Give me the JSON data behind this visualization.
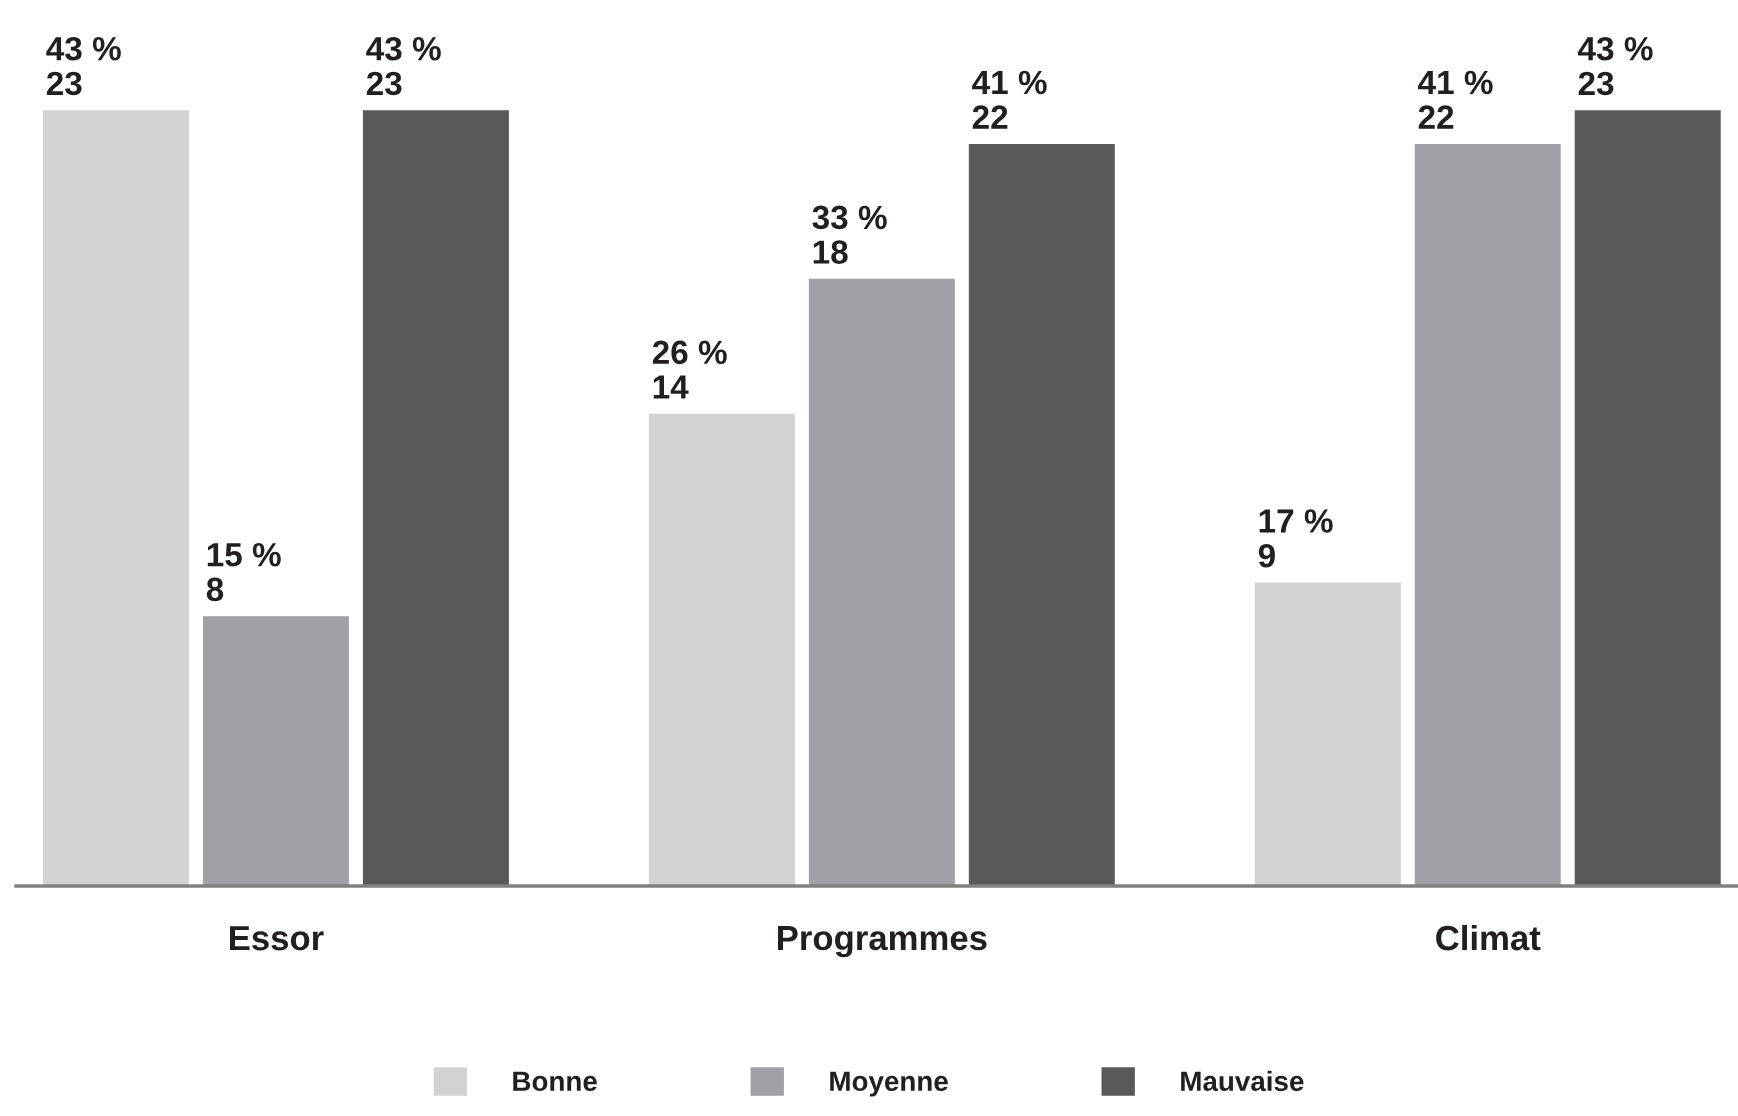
{
  "chart_data": {
    "type": "bar",
    "categories": [
      "Essor",
      "Programmes",
      "Climat"
    ],
    "series": [
      {
        "name": "Bonne",
        "color": "#d1d2d4",
        "values": [
          23,
          14,
          9
        ],
        "value_labels": [
          "43 %\n23",
          "26 %\n14",
          "17 %\n9"
        ]
      },
      {
        "name": "Moyenne",
        "color": "#a0a1a5",
        "values": [
          8,
          18,
          22
        ],
        "value_labels": [
          "15 %\n8",
          "33 %\n18",
          "41 %\n22"
        ]
      },
      {
        "name": "Mauvaise",
        "color": "#58595b",
        "values": [
          23,
          22,
          23
        ],
        "value_labels": [
          "43 %\n23",
          "41 %\n22",
          "43 %\n23"
        ]
      }
    ],
    "legend": "bottom",
    "grid": false
  }
}
